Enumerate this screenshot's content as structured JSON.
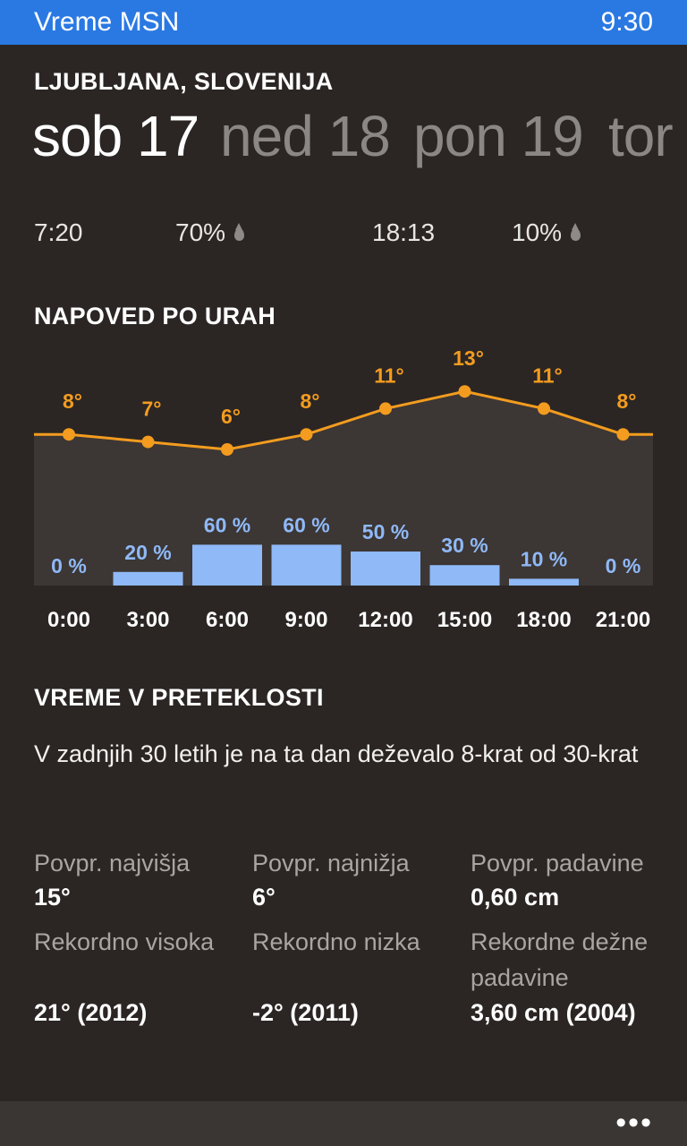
{
  "status_bar": {
    "app_title": "Vreme MSN",
    "time": "9:30"
  },
  "location": "LJUBLJANA, SLOVENIJA",
  "days": [
    {
      "label": "sob 17",
      "active": true
    },
    {
      "label": "ned 18",
      "active": false
    },
    {
      "label": "pon 19",
      "active": false
    },
    {
      "label": "tor",
      "active": false
    }
  ],
  "sun_info": {
    "sunrise": "7:20",
    "sunrise_precip": "70%",
    "sunset": "18:13",
    "sunset_precip": "10%"
  },
  "hourly_title": "NAPOVED PO URAH",
  "chart_data": {
    "type": "line",
    "x": [
      "0:00",
      "3:00",
      "6:00",
      "9:00",
      "12:00",
      "15:00",
      "18:00",
      "21:00"
    ],
    "series": [
      {
        "values": [
          8,
          7,
          6,
          8,
          11,
          13,
          11,
          8
        ],
        "labels": [
          "8°",
          "7°",
          "6°",
          "8°",
          "11°",
          "13°",
          "11°",
          "8°"
        ],
        "color": "#f39c1f"
      },
      {
        "values": [
          0,
          20,
          60,
          60,
          50,
          30,
          10,
          0
        ],
        "labels": [
          "0 %",
          "20 %",
          "60 %",
          "60 %",
          "50 %",
          "30 %",
          "10 %",
          "0 %"
        ],
        "color": "#8fb9f7"
      }
    ]
  },
  "history": {
    "title": "VREME V PRETEKLOSTI",
    "text": "V zadnjih 30 letih je na ta dan deževalo 8-krat od 30-krat",
    "stats": [
      {
        "label": "Povpr. najvišja",
        "value": "15°"
      },
      {
        "label": "Povpr. najnižja",
        "value": "6°"
      },
      {
        "label": "Povpr. padavine",
        "value": "0,60 cm"
      },
      {
        "label": "Rekordno visoka",
        "value": "21°  (2012)"
      },
      {
        "label": "Rekordno nizka",
        "value": "-2°  (2011)"
      },
      {
        "label": "Rekordne dežne padavine",
        "value": "3,60 cm  (2004)"
      }
    ]
  },
  "app_bar": {
    "more_label": "•••"
  },
  "colors": {
    "accent": "#2a79e3",
    "temperature": "#f39c1f",
    "precipitation": "#8fb9f7",
    "background": "#2b2624"
  }
}
